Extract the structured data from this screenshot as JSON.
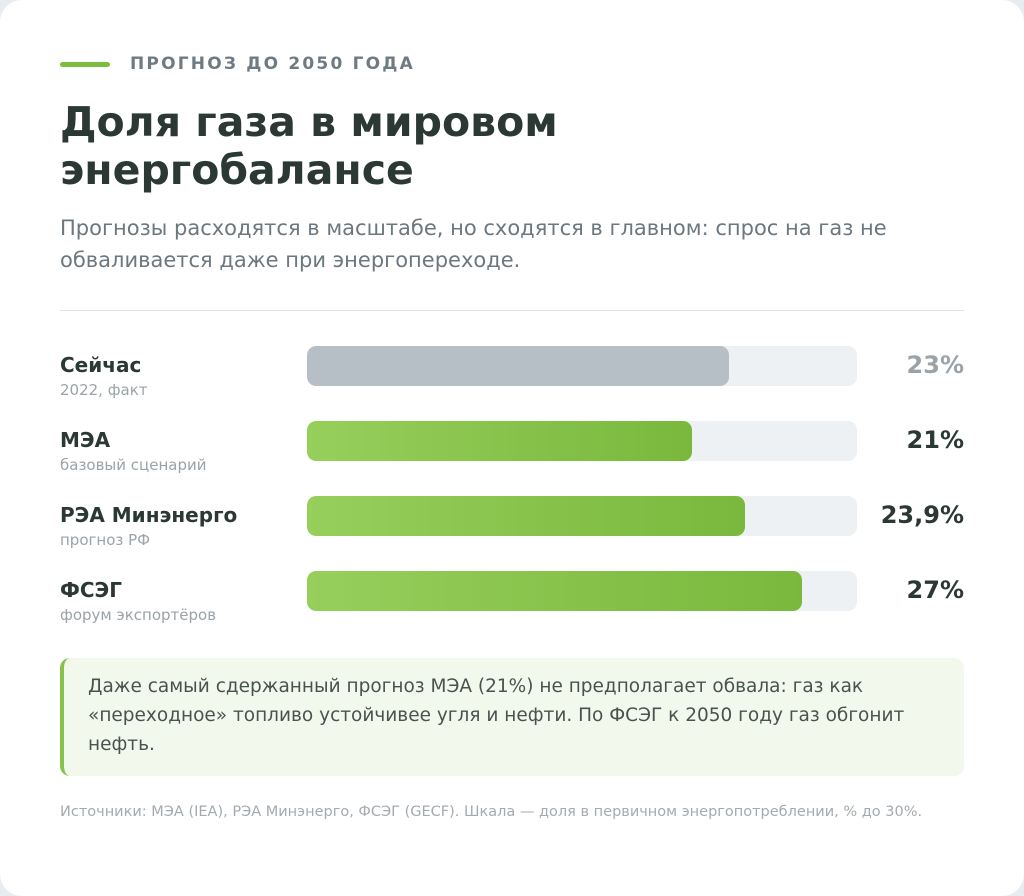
{
  "eyebrow": "ПРОГНОЗ ДО 2050 ГОДА",
  "title_line1": "Доля газа в мировом",
  "title_line2": "энергобалансе",
  "subtitle": "Прогнозы расходятся в масштабе, но сходятся в главном: спрос на газ не обваливается даже при энергопереходе.",
  "chart_data": {
    "type": "bar",
    "orientation": "horizontal",
    "title": "",
    "xlim": [
      0,
      30
    ],
    "unit": "%",
    "colors": {
      "actual": "#b6bfc5",
      "forecast": "#86c14a",
      "track": "#eef1f3"
    },
    "rows": [
      {
        "name": "Сейчас",
        "note": "2022, факт",
        "value": 23,
        "label": "23%",
        "style": "muted"
      },
      {
        "name": "МЭА",
        "note": "базовый сценарий",
        "value": 21,
        "label": "21%",
        "style": "accent"
      },
      {
        "name": "РЭА Минэнерго",
        "note": "прогноз РФ",
        "value": 23.9,
        "label": "23,9%",
        "style": "accent"
      },
      {
        "name": "ФСЭГ",
        "note": "форум экспортёров",
        "value": 27,
        "label": "27%",
        "style": "accent"
      }
    ]
  },
  "callout": "Даже самый сдержанный прогноз МЭА (21%) не предполагает обвала: газ как «переходное» топливо устойчивее угля и нефти. По ФСЭГ к 2050 году газ обгонит нефть.",
  "footnote": "Источники: МЭА (IEA), РЭА Минэнерго, ФСЭГ (GECF). Шкала — доля в первичном энергопотреблении, % до 30%."
}
